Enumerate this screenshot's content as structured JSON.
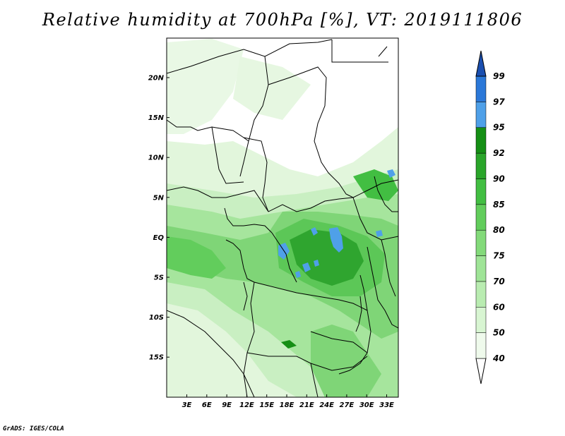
{
  "title": "Relative humidity at 700hPa [%], VT: 2019111806",
  "credit": "GrADS: IGES/COLA",
  "lon_ticks": [
    "3E",
    "6E",
    "9E",
    "12E",
    "15E",
    "18E",
    "21E",
    "24E",
    "27E",
    "30E",
    "33E"
  ],
  "lat_ticks": [
    "20N",
    "15N",
    "10N",
    "5N",
    "EQ",
    "5S",
    "10S",
    "15S"
  ],
  "colorbar": {
    "labels": [
      "40",
      "50",
      "60",
      "70",
      "75",
      "80",
      "85",
      "90",
      "92",
      "95",
      "97",
      "99"
    ],
    "colors": [
      "#effaec",
      "#d8f5d2",
      "#b9ecb1",
      "#9fe497",
      "#83da7a",
      "#62cd5c",
      "#42be42",
      "#2aa52a",
      "#158f15",
      "#4fa0e8",
      "#2b78d8",
      "#1a4fb0"
    ]
  }
}
